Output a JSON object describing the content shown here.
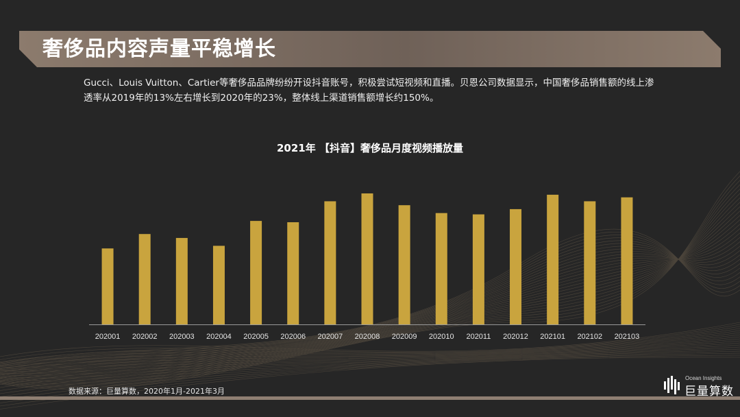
{
  "header": {
    "title": "奢侈品内容声量平稳增长"
  },
  "description": "Gucci、Louis Vuitton、Cartier等奢侈品品牌纷纷开设抖音账号，积极尝试短视频和直播。贝恩公司数据显示，中国奢侈品销售额的线上渗透率从2019年的13%左右增长到2020年的23%，整体线上渠道销售额增长约150%。",
  "footer": {
    "source": "数据来源：巨量算数，2020年1月-2021年3月"
  },
  "logo": {
    "en": "Ocean Insights",
    "cn": "巨量算数"
  },
  "colors": {
    "background": "#262626",
    "bar": "#c9a43e",
    "title_band": "#8f7f72",
    "axis": "#9a9a9a"
  },
  "chart_data": {
    "type": "bar",
    "title": "2021年 【抖音】奢侈品月度视频播放量",
    "xlabel": "",
    "ylabel": "",
    "categories": [
      "202001",
      "202002",
      "202003",
      "202004",
      "202005",
      "202006",
      "202007",
      "202008",
      "202009",
      "202010",
      "202011",
      "202012",
      "202101",
      "202102",
      "202103"
    ],
    "values": [
      58,
      69,
      66,
      60,
      79,
      78,
      94,
      100,
      91,
      85,
      84,
      88,
      99,
      94,
      97
    ],
    "ylim": [
      0,
      100
    ],
    "grid": false,
    "legend": "none"
  }
}
